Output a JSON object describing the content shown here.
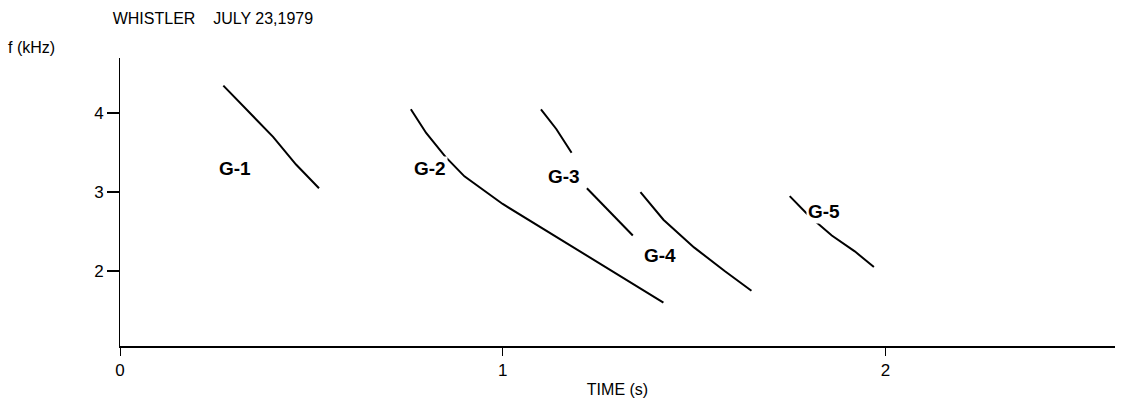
{
  "chart_data": {
    "type": "line",
    "title": "WHISTLER    JULY 23,1979",
    "xlabel": "TIME (s)",
    "ylabel": "f (kHz)",
    "xlim": [
      0,
      2.6
    ],
    "ylim": [
      1.05,
      4.7
    ],
    "xticks": [
      0,
      1,
      2
    ],
    "yticks": [
      2,
      3,
      4
    ],
    "grid": false,
    "color": "#000000",
    "series": [
      {
        "name": "G-1",
        "label_x": 0.3,
        "label_y": 3.3,
        "x": [
          0.27,
          0.33,
          0.4,
          0.46,
          0.52
        ],
        "values": [
          4.35,
          4.05,
          3.7,
          3.35,
          3.05
        ]
      },
      {
        "name": "G-2",
        "label_x": 0.81,
        "label_y": 3.3,
        "x": [
          0.76,
          0.8,
          0.85,
          0.9,
          1.0,
          1.1,
          1.2,
          1.3,
          1.42
        ],
        "values": [
          4.05,
          3.75,
          3.45,
          3.2,
          2.85,
          2.55,
          2.25,
          1.95,
          1.6
        ]
      },
      {
        "name": "G-3",
        "label_x": 1.16,
        "label_y": 3.2,
        "x": [
          1.1,
          1.14,
          1.18,
          1.2,
          1.22,
          1.28,
          1.34
        ],
        "values": [
          4.05,
          3.8,
          3.5,
          null,
          3.05,
          2.75,
          2.45
        ]
      },
      {
        "name": "G-4",
        "label_x": 1.41,
        "label_y": 2.2,
        "x": [
          1.36,
          1.42,
          1.5,
          1.58,
          1.65
        ],
        "values": [
          3.0,
          2.65,
          2.3,
          2.0,
          1.75
        ]
      },
      {
        "name": "G-5",
        "label_x": 1.84,
        "label_y": 2.75,
        "x": [
          1.75,
          1.8,
          1.86,
          1.92,
          1.97
        ],
        "values": [
          2.95,
          2.7,
          2.45,
          2.25,
          2.05
        ]
      }
    ]
  }
}
